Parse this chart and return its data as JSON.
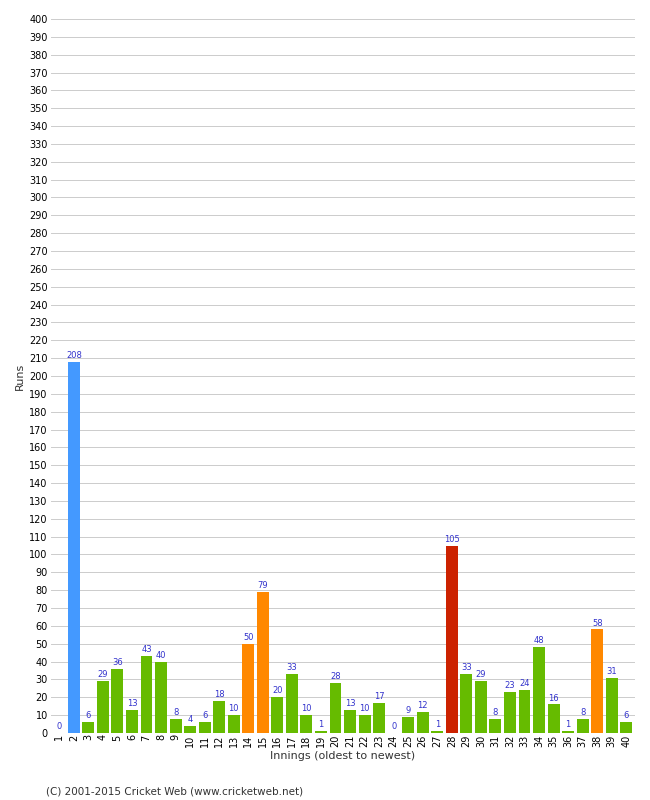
{
  "innings": [
    1,
    2,
    3,
    4,
    5,
    6,
    7,
    8,
    9,
    10,
    11,
    12,
    13,
    14,
    15,
    16,
    17,
    18,
    19,
    20,
    21,
    22,
    23,
    24,
    25,
    26,
    27,
    28,
    29,
    30,
    31,
    32,
    33,
    34,
    35,
    36,
    37,
    38,
    39,
    40
  ],
  "values": [
    0,
    208,
    6,
    29,
    36,
    13,
    43,
    40,
    8,
    4,
    6,
    18,
    10,
    50,
    79,
    20,
    33,
    10,
    1,
    28,
    13,
    10,
    17,
    0,
    9,
    12,
    1,
    105,
    33,
    29,
    8,
    23,
    24,
    48,
    16,
    1,
    8,
    58,
    31,
    6
  ],
  "colors": [
    "#66bb00",
    "#4499ff",
    "#66bb00",
    "#66bb00",
    "#66bb00",
    "#66bb00",
    "#66bb00",
    "#66bb00",
    "#66bb00",
    "#66bb00",
    "#66bb00",
    "#66bb00",
    "#66bb00",
    "#ff8800",
    "#ff8800",
    "#66bb00",
    "#66bb00",
    "#66bb00",
    "#66bb00",
    "#66bb00",
    "#66bb00",
    "#66bb00",
    "#66bb00",
    "#66bb00",
    "#66bb00",
    "#66bb00",
    "#66bb00",
    "#cc2200",
    "#66bb00",
    "#66bb00",
    "#66bb00",
    "#66bb00",
    "#66bb00",
    "#66bb00",
    "#66bb00",
    "#66bb00",
    "#66bb00",
    "#ff8800",
    "#66bb00",
    "#66bb00"
  ],
  "xlabel": "Innings (oldest to newest)",
  "ylabel": "Runs",
  "ylim_max": 400,
  "ytick_step": 10,
  "footer": "(C) 2001-2015 Cricket Web (www.cricketweb.net)",
  "bg_color": "#ffffff",
  "grid_color": "#cccccc",
  "label_color": "#3333cc",
  "axis_label_color": "#333333",
  "bar_label_fontsize": 6.0,
  "axis_tick_fontsize": 7.0,
  "xlabel_fontsize": 8.0,
  "ylabel_fontsize": 8.0,
  "footer_fontsize": 7.5
}
